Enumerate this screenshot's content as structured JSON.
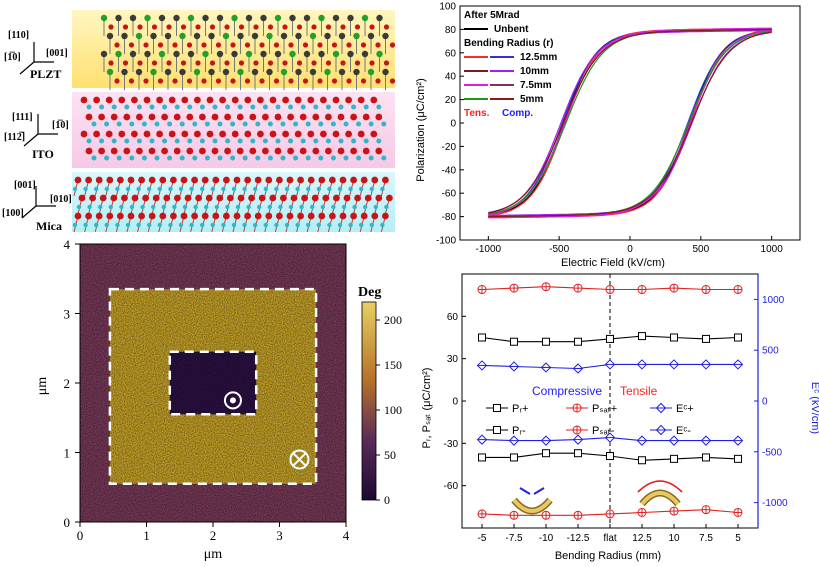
{
  "structure": {
    "layers": [
      {
        "name": "PLZT",
        "axis_up": "[110]",
        "axis_right": "[001]",
        "axis_left": "[1̅0]"
      },
      {
        "name": "ITO",
        "axis_up": "[111]",
        "axis_right": "[1̅0]",
        "axis_left": "[112̅]"
      },
      {
        "name": "Mica",
        "axis_up": "[001]",
        "axis_right": "[010]",
        "axis_left": "[100]"
      }
    ],
    "colors": {
      "oxygen": "#c81414",
      "metal": "#3a3a3a",
      "small": "#33b5c8",
      "green": "#22a02a"
    }
  },
  "afm": {
    "x_label": "μm",
    "y_label": "μm",
    "x_ticks": [
      "0",
      "1",
      "2",
      "3",
      "4"
    ],
    "y_ticks": [
      "0",
      "1",
      "2",
      "3",
      "4"
    ],
    "colorbar_label": "Deg",
    "colorbar_ticks": [
      "0",
      "50",
      "100",
      "150",
      "200"
    ],
    "outer_box_um": [
      0.45,
      0.55,
      3.55,
      3.35
    ],
    "inner_box_um": [
      1.35,
      1.55,
      2.65,
      2.45
    ],
    "dot_up_um": [
      2.3,
      1.75
    ],
    "dot_down_um": [
      3.3,
      0.9
    ],
    "colors": {
      "dark": "#2d1145",
      "mid": "#7a3a5a",
      "bright": "#c9a428"
    }
  },
  "loops": {
    "chart_data": {
      "type": "line",
      "xlabel": "Electric Field (kV/cm)",
      "ylabel": "Polarization (μC/cm²)",
      "xlim": [
        -1200,
        1200
      ],
      "ylim": [
        -100,
        100
      ],
      "x_ticks": [
        -1000,
        -500,
        0,
        500,
        1000
      ],
      "y_ticks": [
        -100,
        -80,
        -60,
        -40,
        -20,
        0,
        20,
        40,
        60,
        80,
        100
      ],
      "legend": {
        "title": "After 5Mrad",
        "entries": [
          {
            "label": "Unbent",
            "color": "#000000"
          },
          {
            "label": "Bending Radius (r)",
            "color": null
          },
          {
            "label": "12.5mm",
            "color": "#ff2a2a",
            "color2": "#3030e0"
          },
          {
            "label": "10mm",
            "color": "#7a1a1a",
            "color2": "#a020f0"
          },
          {
            "label": "7.5mm",
            "color": "#e020e0",
            "color2": "#7a3060"
          },
          {
            "label": "5mm",
            "color": "#1a9a1a",
            "color2": "#8a1a1a"
          }
        ],
        "tens_label": "Tens.",
        "comp_label": "Comp.",
        "tens_color": "#ff2020",
        "comp_color": "#2020ff"
      },
      "series": [
        {
          "color": "#000000",
          "Ec_plus": 420,
          "Ec_minus": -470,
          "Psat": 80
        },
        {
          "color": "#ff2a2a",
          "Ec_plus": 430,
          "Ec_minus": -460,
          "Psat": 81
        },
        {
          "color": "#3030e0",
          "Ec_plus": 410,
          "Ec_minus": -480,
          "Psat": 80
        },
        {
          "color": "#a020f0",
          "Ec_plus": 440,
          "Ec_minus": -490,
          "Psat": 79
        },
        {
          "color": "#e020e0",
          "Ec_plus": 425,
          "Ec_minus": -465,
          "Psat": 81
        },
        {
          "color": "#1a9a1a",
          "Ec_plus": 415,
          "Ec_minus": -455,
          "Psat": 80
        },
        {
          "color": "#8a1a1a",
          "Ec_plus": 435,
          "Ec_minus": -475,
          "Psat": 80
        }
      ]
    }
  },
  "bending": {
    "chart_data": {
      "type": "line",
      "xlabel": "Bending Radius (mm)",
      "ylabel_left": "Pᵣ, Pₛₐₜ (μC/cm²)",
      "ylabel_right": "Eᶜ (kV/cm)",
      "categories": [
        "-5",
        "-7.5",
        "-10",
        "-12.5",
        "flat",
        "12.5",
        "10",
        "7.5",
        "5"
      ],
      "ylim_left": [
        -90,
        90
      ],
      "y_ticks_left": [
        -60,
        -30,
        0,
        30,
        60
      ],
      "ylim_right": [
        -1250,
        1250
      ],
      "y_ticks_right": [
        -1000,
        -500,
        0,
        500,
        1000
      ],
      "series": [
        {
          "name": "Pr+",
          "axis": "left",
          "color": "#000000",
          "marker": "square",
          "values": [
            45,
            42,
            42,
            42,
            44,
            46,
            45,
            44,
            45
          ]
        },
        {
          "name": "Psat+",
          "axis": "left",
          "color": "#e02020",
          "marker": "circle",
          "values": [
            79,
            80,
            81,
            80,
            79,
            79,
            80,
            79,
            79
          ]
        },
        {
          "name": "Ec+",
          "axis": "right",
          "color": "#2020e0",
          "marker": "diamond",
          "values": [
            350,
            340,
            330,
            320,
            360,
            360,
            360,
            360,
            360
          ]
        },
        {
          "name": "Pr-",
          "axis": "left",
          "color": "#000000",
          "marker": "square",
          "values": [
            -40,
            -40,
            -37,
            -37,
            -39,
            -42,
            -41,
            -40,
            -41
          ]
        },
        {
          "name": "Psat-",
          "axis": "left",
          "color": "#e02020",
          "marker": "circle",
          "values": [
            -80,
            -81,
            -81,
            -81,
            -80,
            -79,
            -78,
            -77,
            -79
          ]
        },
        {
          "name": "Ec-",
          "axis": "right",
          "color": "#2020e0",
          "marker": "diamond",
          "values": [
            -380,
            -390,
            -390,
            -380,
            -360,
            -390,
            -390,
            -390,
            -390
          ]
        }
      ],
      "annotations": {
        "compressive": "Compressive",
        "tensile": "Tensile",
        "compressive_color": "#2020ff",
        "tensile_color": "#ff2020"
      },
      "legend_labels": [
        "Pᵣ+",
        "Pₛₐₜ+",
        "Eᶜ+",
        "Pᵣ-",
        "Pₛₐₜ-",
        "Eᶜ-"
      ]
    }
  }
}
